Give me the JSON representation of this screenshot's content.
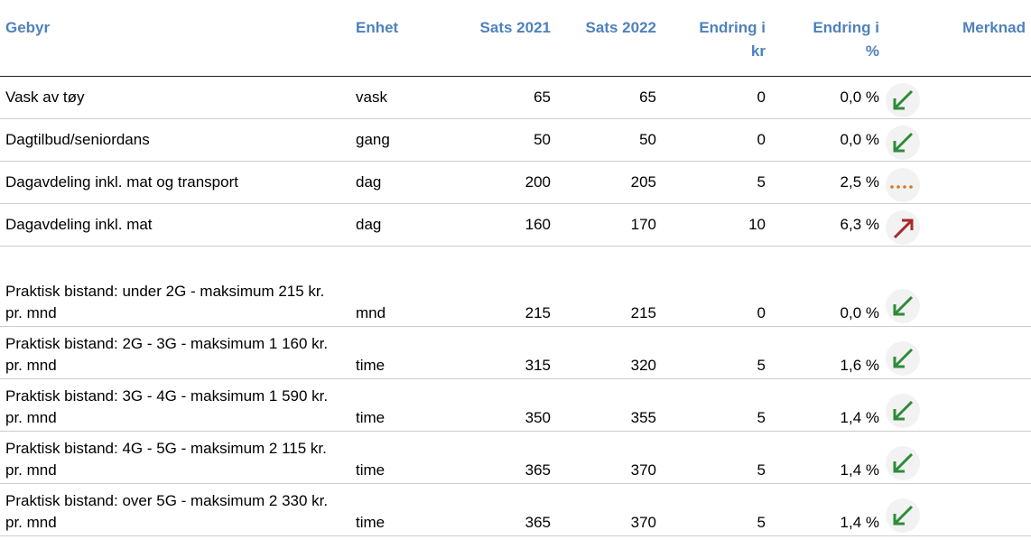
{
  "table": {
    "header": [
      "Gebyr",
      "Enhet",
      "Sats 2021",
      "Sats 2022",
      "Endring i kr",
      "Endring i %",
      "Merknad"
    ],
    "rows": [
      [
        "Vask av tøy",
        "vask",
        65,
        65,
        0,
        "0,0 %"
      ],
      [
        "Dagtilbud/seniordans",
        "gang",
        50,
        50,
        0,
        "0,0 %"
      ],
      [
        "Dagavdeling inkl. mat og transport",
        "dag",
        200,
        205,
        5,
        "2,5 %"
      ],
      [
        "Dagavdeling inkl. mat",
        "dag",
        160,
        170,
        10,
        "6,3 %"
      ],
      [
        "Praktisk bistand: under 2G - maksimum 215 kr. pr. mnd",
        "mnd",
        215,
        215,
        0,
        "0,0 %"
      ],
      [
        "Praktisk bistand: 2G - 3G - maksimum 1 160 kr. pr. mnd",
        "time",
        315,
        320,
        5,
        "1,6 %"
      ],
      [
        "Praktisk bistand: 3G - 4G - maksimum 1 590 kr. pr. mnd",
        "time",
        350,
        355,
        5,
        "1,4 %"
      ],
      [
        "Praktisk bistand: 4G - 5G - maksimum 2 115 kr. pr. mnd",
        "time",
        365,
        370,
        5,
        "1,4 %"
      ],
      [
        "Praktisk bistand: over 5G - maksimum 2 330 kr. pr. mnd",
        "time",
        365,
        370,
        5,
        "1,4 %"
      ]
    ]
  }
}
